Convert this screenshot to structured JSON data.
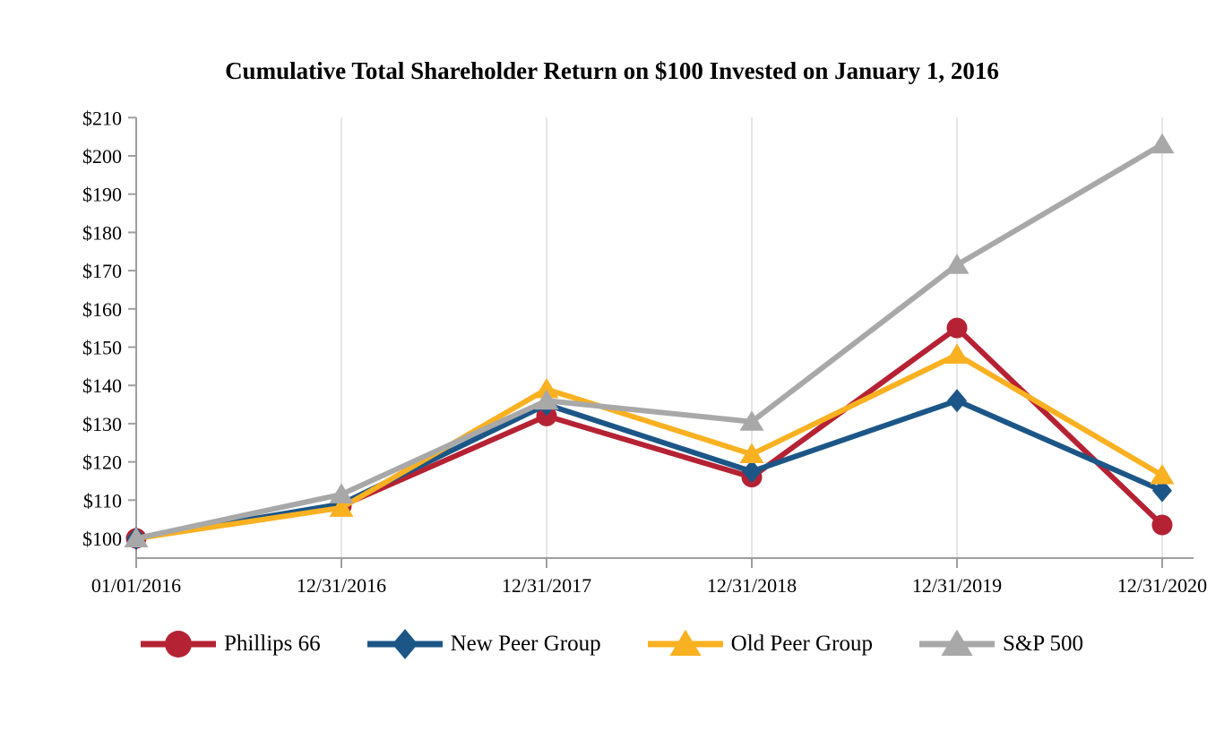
{
  "chart_data": {
    "type": "line",
    "title": "Cumulative Total Shareholder Return on $100 Invested on January 1, 2016",
    "x_categories": [
      "01/01/2016",
      "12/31/2016",
      "12/31/2017",
      "12/31/2018",
      "12/31/2019",
      "12/31/2020"
    ],
    "y_axis": {
      "min": 100,
      "max": 210,
      "step": 10,
      "tick_prefix": "$",
      "tick_labels": [
        "$100",
        "$110",
        "$120",
        "$130",
        "$140",
        "$150",
        "$160",
        "$170",
        "$180",
        "$190",
        "$200",
        "$210"
      ]
    },
    "grid": "vertical-only",
    "legend_position": "bottom",
    "axis_color": "#9e9e9e",
    "gridline_color": "#dddddd",
    "series": [
      {
        "name": "Phillips 66",
        "color": "#B52233",
        "marker": "circle",
        "values": [
          100,
          108.5,
          132,
          116,
          155,
          103.5
        ]
      },
      {
        "name": "New Peer Group",
        "color": "#1C5687",
        "marker": "diamond",
        "values": [
          100,
          109,
          135,
          117.5,
          136,
          112.5
        ]
      },
      {
        "name": "Old Peer Group",
        "color": "#F9B122",
        "marker": "triangle",
        "values": [
          100,
          108,
          139,
          122,
          148,
          116.5
        ]
      },
      {
        "name": "S&P 500",
        "color": "#A8A8A9",
        "marker": "triangle",
        "values": [
          100,
          111.5,
          136,
          130.5,
          171.5,
          203
        ]
      }
    ]
  }
}
